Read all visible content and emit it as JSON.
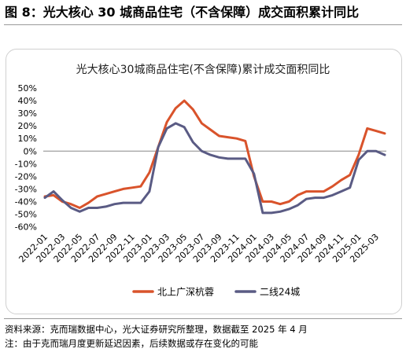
{
  "figure_title": "图 8：光大核心 30 城商品住宅（不含保障）成交面积累计同比",
  "source_note": "资料来源：克而瑞数据中心，光大证券研究所整理，数据截至 2025 年 4 月",
  "footnote": "注：由于克而瑞月度更新延迟因素，后续数据或存在变化的可能",
  "colors": {
    "series1": "#d9532b",
    "series2": "#5a5b84",
    "axis": "#888888",
    "text": "#000000"
  },
  "chart_data": {
    "type": "line",
    "title": "光大核心30城商品住宅(不含保障)累计成交面积同比",
    "ylim": [
      -60,
      50
    ],
    "yticks": [
      "50%",
      "40%",
      "30%",
      "20%",
      "10%",
      "0%",
      "-10%",
      "-20%",
      "-30%",
      "-40%",
      "-50%",
      "-60%"
    ],
    "ytick_values": [
      50,
      40,
      30,
      20,
      10,
      0,
      -10,
      -20,
      -30,
      -40,
      -50,
      -60
    ],
    "x": [
      "2022-01",
      "2022-02",
      "2022-03",
      "2022-04",
      "2022-05",
      "2022-06",
      "2022-07",
      "2022-08",
      "2022-09",
      "2022-10",
      "2022-11",
      "2022-12",
      "2023-01",
      "2023-02",
      "2023-03",
      "2023-04",
      "2023-05",
      "2023-06",
      "2023-07",
      "2023-08",
      "2023-09",
      "2023-10",
      "2023-11",
      "2023-12",
      "2024-01",
      "2024-02",
      "2024-03",
      "2024-04",
      "2024-05",
      "2024-06",
      "2024-07",
      "2024-08",
      "2024-09",
      "2024-10",
      "2024-11",
      "2024-12",
      "2025-01",
      "2025-02",
      "2025-03",
      "2025-04"
    ],
    "xtick_labels": [
      "2022-01",
      "2022-03",
      "2022-05",
      "2022-07",
      "2022-09",
      "2022-11",
      "2023-01",
      "2023-03",
      "2023-05",
      "2023-07",
      "2023-09",
      "2023-11",
      "2024-01",
      "2024-03",
      "2024-05",
      "2024-07",
      "2024-09",
      "2024-11",
      "2025-01",
      "2025-03"
    ],
    "legend_position": "bottom",
    "series": [
      {
        "name": "北上广深杭蓉",
        "values": [
          -36,
          -35,
          -40,
          -42,
          -45,
          -41,
          -36,
          -34,
          -32,
          -30,
          -29,
          -28,
          -17,
          3,
          23,
          34,
          40,
          33,
          22,
          17,
          12,
          11,
          10,
          8,
          -20,
          -40,
          -40,
          -42,
          -40,
          -35,
          -32,
          -32,
          -32,
          -28,
          -23,
          -19,
          -3,
          18,
          16,
          14
        ]
      },
      {
        "name": "二线24城",
        "values": [
          -37,
          -32,
          -39,
          -45,
          -48,
          -45,
          -45,
          -44,
          -42,
          -41,
          -41,
          -41,
          -32,
          3,
          18,
          22,
          19,
          7,
          0,
          -3,
          -5,
          -6,
          -6,
          -6,
          -18,
          -49,
          -49,
          -48,
          -46,
          -43,
          -38,
          -37,
          -37,
          -35,
          -32,
          -29,
          -7,
          0,
          0,
          -3
        ]
      }
    ]
  }
}
